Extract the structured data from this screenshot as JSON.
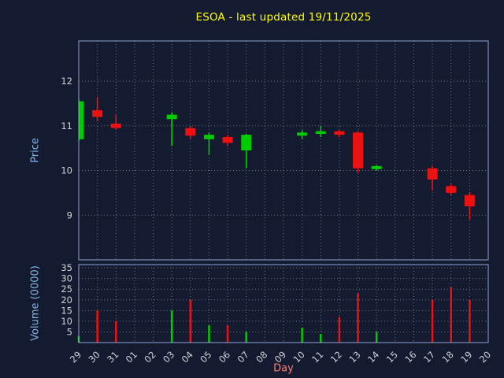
{
  "title": "ESOA - last updated 19/11/2025",
  "colors": {
    "background": "#141b30",
    "up": "#00cc00",
    "down": "#ee1111",
    "title": "#ffff00",
    "axis_label": "#7fb5e8",
    "xlabel": "#fa8072",
    "tick": "#d0d2d6",
    "grid": "#ffffff",
    "spine": "#8ea6cf"
  },
  "price_axis": {
    "label": "Price",
    "ticks": [
      9,
      10,
      11,
      12
    ],
    "ylim": [
      8.0,
      12.9
    ]
  },
  "volume_axis": {
    "label": "Volume (0000)",
    "ticks": [
      5,
      10,
      15,
      20,
      25,
      30,
      35
    ],
    "ylim": [
      0,
      36.5
    ]
  },
  "x_axis": {
    "label": "Day",
    "categories": [
      "29",
      "30",
      "31",
      "01",
      "02",
      "03",
      "04",
      "05",
      "06",
      "07",
      "08",
      "09",
      "10",
      "11",
      "12",
      "13",
      "14",
      "15",
      "16",
      "17",
      "18",
      "19",
      "20"
    ]
  },
  "chart_data": {
    "type": "candlestick+volume",
    "title": "ESOA - last updated 19/11/2025",
    "xlabel": "Day",
    "ylabel_price": "Price",
    "ylabel_volume": "Volume (0000)",
    "grid": true,
    "categories": [
      "29",
      "30",
      "31",
      "01",
      "02",
      "03",
      "04",
      "05",
      "06",
      "07",
      "08",
      "09",
      "10",
      "11",
      "12",
      "13",
      "14",
      "15",
      "16",
      "17",
      "18",
      "19",
      "20"
    ],
    "candles": [
      {
        "day": "29",
        "open": 10.7,
        "high": 11.6,
        "low": 10.65,
        "close": 11.55,
        "volume": 3
      },
      {
        "day": "30",
        "open": 11.35,
        "high": 11.65,
        "low": 11.1,
        "close": 11.2,
        "volume": 15
      },
      {
        "day": "31",
        "open": 11.05,
        "high": 11.25,
        "low": 10.92,
        "close": 10.95,
        "volume": 10
      },
      {
        "day": "03",
        "open": 11.15,
        "high": 11.3,
        "low": 10.55,
        "close": 11.25,
        "volume": 15
      },
      {
        "day": "04",
        "open": 10.95,
        "high": 11.0,
        "low": 10.7,
        "close": 10.78,
        "volume": 20
      },
      {
        "day": "05",
        "open": 10.7,
        "high": 10.85,
        "low": 10.35,
        "close": 10.8,
        "volume": 8
      },
      {
        "day": "06",
        "open": 10.75,
        "high": 10.8,
        "low": 10.55,
        "close": 10.62,
        "volume": 8
      },
      {
        "day": "07",
        "open": 10.45,
        "high": 10.82,
        "low": 10.05,
        "close": 10.8,
        "volume": 5
      },
      {
        "day": "10",
        "open": 10.78,
        "high": 10.9,
        "low": 10.7,
        "close": 10.85,
        "volume": 7
      },
      {
        "day": "11",
        "open": 10.82,
        "high": 11.0,
        "low": 10.75,
        "close": 10.88,
        "volume": 4
      },
      {
        "day": "12",
        "open": 10.88,
        "high": 10.9,
        "low": 10.75,
        "close": 10.8,
        "volume": 12
      },
      {
        "day": "13",
        "open": 10.85,
        "high": 10.88,
        "low": 9.95,
        "close": 10.05,
        "volume": 23
      },
      {
        "day": "14",
        "open": 10.03,
        "high": 10.12,
        "low": 10.0,
        "close": 10.1,
        "volume": 5
      },
      {
        "day": "17",
        "open": 10.05,
        "high": 10.1,
        "low": 9.55,
        "close": 9.8,
        "volume": 20
      },
      {
        "day": "18",
        "open": 9.65,
        "high": 9.7,
        "low": 9.45,
        "close": 9.5,
        "volume": 26
      },
      {
        "day": "19",
        "open": 9.45,
        "high": 9.5,
        "low": 8.9,
        "close": 9.2,
        "volume": 20
      }
    ]
  }
}
